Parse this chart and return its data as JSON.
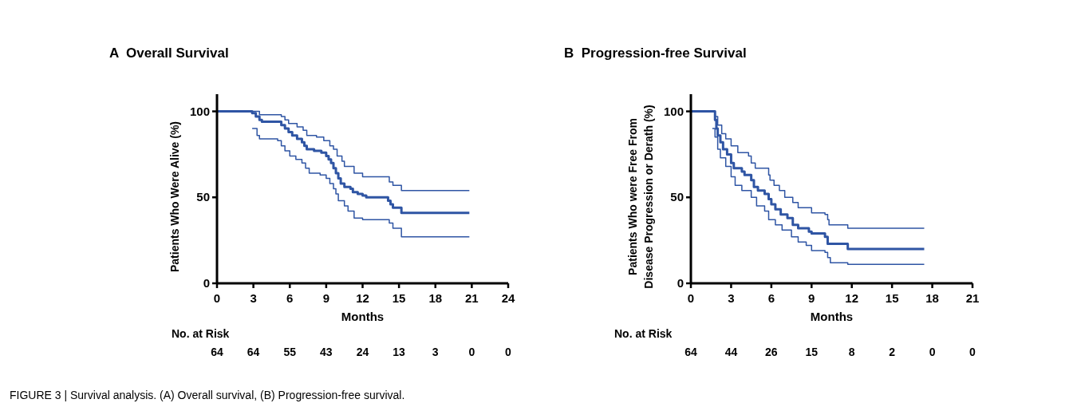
{
  "chart_data": [
    {
      "type": "step",
      "title": "A  Overall Survival",
      "xlabel": "Months",
      "ylabel": "Patients Who Were Alive (%)",
      "xlim": [
        0,
        24
      ],
      "xticks": [
        0,
        3,
        6,
        9,
        12,
        15,
        18,
        21,
        24
      ],
      "ylim": [
        0,
        110
      ],
      "yticks": [
        0,
        50,
        100
      ],
      "line_style": "solid",
      "annotations": [
        "No. at Risk",
        "64",
        "64",
        "55",
        "43",
        "24",
        "13",
        "3",
        "0",
        "0",
        "FIGURE 3 | Survival analysis. (A) Overall survival, (B) Progression-free survival."
      ],
      "series": [
        {
          "color": "#2f55a4",
          "x": [
            0,
            2.9,
            3.2,
            3.5,
            3.7,
            5.3,
            5.6,
            5.9,
            6.2,
            6.6,
            7.0,
            7.2,
            7.4,
            8.0,
            8.6,
            9.0,
            9.2,
            9.4,
            9.6,
            9.8,
            10.0,
            10.2,
            10.5,
            11.0,
            11.2,
            11.6,
            12.0,
            12.3,
            14.1,
            14.3,
            14.5,
            15.2,
            20.8
          ],
          "values": [
            100,
            99,
            97,
            95,
            94,
            92,
            90,
            88,
            86,
            84,
            82,
            80,
            78,
            77,
            76,
            74,
            72,
            70,
            67,
            64,
            61,
            58,
            56,
            55,
            53,
            52,
            51,
            50,
            48,
            46,
            44,
            41,
            41
          ]
        },
        {
          "color": "#2f55a4",
          "x": [
            0,
            3.2,
            3.5,
            5.3,
            5.6,
            5.9,
            6.6,
            7.1,
            7.4,
            8.2,
            8.8,
            9.3,
            9.6,
            9.9,
            10.3,
            10.5,
            11.3,
            12.0,
            14.2,
            14.5,
            15.2,
            20.8
          ],
          "values": [
            100,
            100,
            98,
            97,
            95,
            93,
            91,
            89,
            86,
            85,
            83,
            80,
            78,
            74,
            71,
            68,
            64,
            62,
            59,
            57,
            54,
            54
          ]
        },
        {
          "color": "#2f55a4",
          "x": [
            2.9,
            3.3,
            3.5,
            5.0,
            5.3,
            5.6,
            6.0,
            6.5,
            7.0,
            7.3,
            7.6,
            8.5,
            9.0,
            9.3,
            9.6,
            9.8,
            10.0,
            10.5,
            10.8,
            11.3,
            12.0,
            14.2,
            14.5,
            15.2,
            20.8
          ],
          "values": [
            90,
            86,
            84,
            83,
            80,
            77,
            74,
            72,
            70,
            67,
            64,
            63,
            61,
            58,
            55,
            52,
            48,
            45,
            42,
            38,
            37,
            35,
            32,
            27,
            27
          ]
        }
      ]
    },
    {
      "type": "step",
      "title": "B  Progression-free Survival",
      "xlabel": "Months",
      "ylabel": "Patients Who were Free From\nDisease Progression or Derath (%)",
      "xlim": [
        0,
        21
      ],
      "xticks": [
        0,
        3,
        6,
        9,
        12,
        15,
        18,
        21
      ],
      "ylim": [
        0,
        110
      ],
      "yticks": [
        0,
        50,
        100
      ],
      "line_style": "solid",
      "annotations": [
        "No. at Risk",
        "64",
        "44",
        "26",
        "15",
        "8",
        "2",
        "0",
        "0"
      ],
      "series": [
        {
          "color": "#2f55a4",
          "x": [
            0,
            1.8,
            1.9,
            2.0,
            2.2,
            2.4,
            2.7,
            3.0,
            3.2,
            3.8,
            4.0,
            4.5,
            4.7,
            5.0,
            5.5,
            5.8,
            6.0,
            6.3,
            6.7,
            7.2,
            7.6,
            8.0,
            8.8,
            9.0,
            10.0,
            10.2,
            11.7,
            17.4
          ],
          "values": [
            100,
            95,
            90,
            86,
            82,
            78,
            75,
            70,
            67,
            65,
            63,
            60,
            56,
            54,
            52,
            49,
            46,
            43,
            40,
            38,
            34,
            32,
            30,
            29,
            27,
            23,
            20,
            20
          ]
        },
        {
          "color": "#2f55a4",
          "x": [
            0,
            1.8,
            2.0,
            2.3,
            2.6,
            3.0,
            3.5,
            4.3,
            4.5,
            4.8,
            5.8,
            5.9,
            6.2,
            6.6,
            7.0,
            7.6,
            8.0,
            9.0,
            10.0,
            10.2,
            10.3,
            11.7,
            17.4
          ],
          "values": [
            100,
            97,
            92,
            87,
            84,
            80,
            76,
            74,
            70,
            67,
            63,
            60,
            57,
            54,
            50,
            47,
            44,
            41,
            40,
            37,
            34,
            32,
            32
          ]
        },
        {
          "color": "#2f55a4",
          "x": [
            1.6,
            1.8,
            2.0,
            2.2,
            2.6,
            3.0,
            3.3,
            3.8,
            4.5,
            4.9,
            5.5,
            5.8,
            6.3,
            6.8,
            7.5,
            8.0,
            8.6,
            9.0,
            10.0,
            10.2,
            10.4,
            11.7,
            17.4
          ],
          "values": [
            90,
            85,
            78,
            73,
            68,
            62,
            57,
            54,
            50,
            45,
            42,
            37,
            34,
            31,
            27,
            24,
            22,
            19,
            18,
            15,
            12,
            11,
            11
          ]
        }
      ]
    }
  ]
}
